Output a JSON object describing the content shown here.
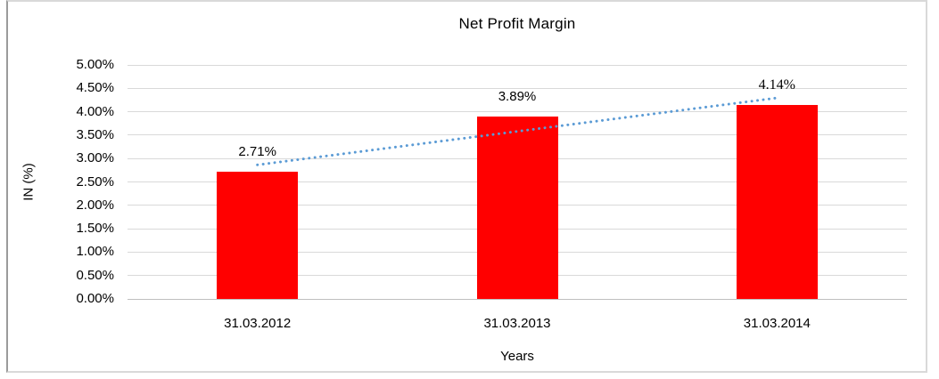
{
  "chart_data": {
    "type": "bar",
    "title": "Net Profit Margin",
    "categories": [
      "31.03.2012",
      "31.03.2013",
      "31.03.2014"
    ],
    "series": [
      {
        "name": "Net Profit Margin",
        "values": [
          2.71,
          3.89,
          4.14
        ]
      }
    ],
    "data_labels": [
      "2.71%",
      "3.89%",
      "4.14%"
    ],
    "xlabel": "Years",
    "ylabel": "IN (%)",
    "ylim": [
      0,
      5
    ],
    "ytick_step": 0.5,
    "ytick_labels": [
      "0.00%",
      "0.50%",
      "1.00%",
      "1.50%",
      "2.00%",
      "2.50%",
      "3.00%",
      "3.50%",
      "4.00%",
      "4.50%",
      "5.00%"
    ],
    "legend": "none",
    "grid": true,
    "colors": {
      "bar": "#FF0000",
      "gridline": "#D9D9D9",
      "axis_line": "#BFBFBF",
      "trendline": "#5B9BD5",
      "text": "#000000"
    },
    "trendline": {
      "type": "linear",
      "style": "dotted",
      "start_value": 2.865,
      "end_value": 4.295
    }
  }
}
